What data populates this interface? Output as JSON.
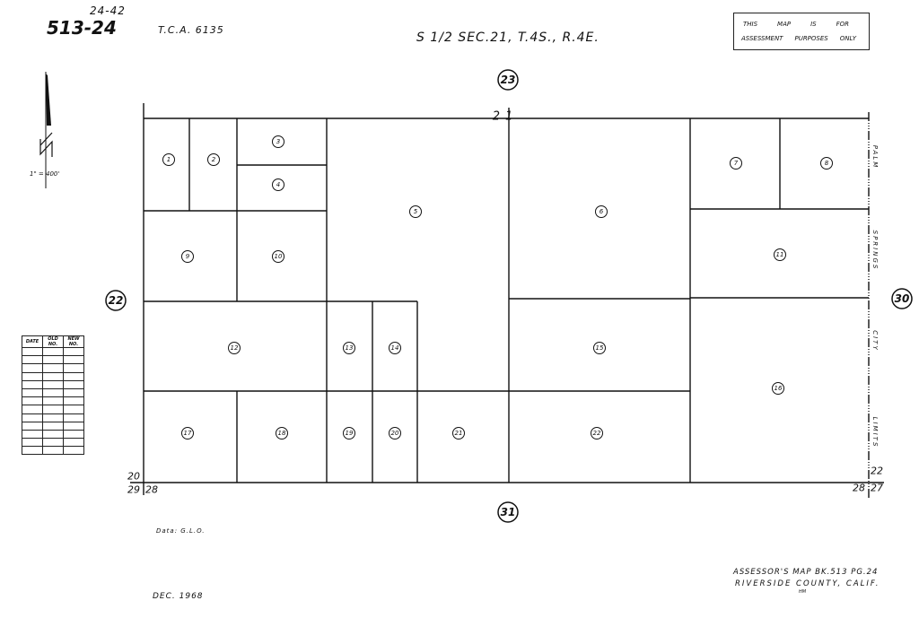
{
  "header": {
    "book_page_small": "24-42",
    "map_number": "513-24",
    "tca": "T.C.A. 6135",
    "section_title": "S 1/2 SEC.21, T.4S., R.4E."
  },
  "notice": {
    "line1": [
      "THIS",
      "MAP",
      "IS",
      "FOR"
    ],
    "line2": [
      "ASSESSMENT",
      "PURPOSES",
      "ONLY"
    ]
  },
  "north_arrow": {
    "icon": "north-arrow-icon",
    "scale": "1\" = 400'"
  },
  "revision_table": {
    "columns": [
      "DATE",
      "OLD NO.",
      "NEW NO."
    ],
    "rows": 13
  },
  "section_number": "21",
  "adjacent_sections": {
    "north": "23",
    "west": "22",
    "east": "30",
    "south": "31"
  },
  "corner_labels": {
    "sw_top": "20",
    "sw_left": "29",
    "sw_right": "28",
    "se_top": "22",
    "se_left": "28",
    "se_right": "27"
  },
  "street_label": [
    "PALM",
    "SPRINGS",
    "CITY",
    "LIMITS"
  ],
  "parcels": [
    "1",
    "2",
    "3",
    "4",
    "5",
    "6",
    "7",
    "8",
    "9",
    "10",
    "11",
    "12",
    "13",
    "14",
    "15",
    "16",
    "17",
    "18",
    "19",
    "20",
    "21",
    "22"
  ],
  "footer": {
    "data_source": "Data: G.L.O.",
    "date": "DEC. 1968",
    "assessor_line": "ASSESSOR'S MAP BK.513 PG.24",
    "county_line": "RIVERSIDE COUNTY, CALIF.",
    "initials": "HM"
  }
}
